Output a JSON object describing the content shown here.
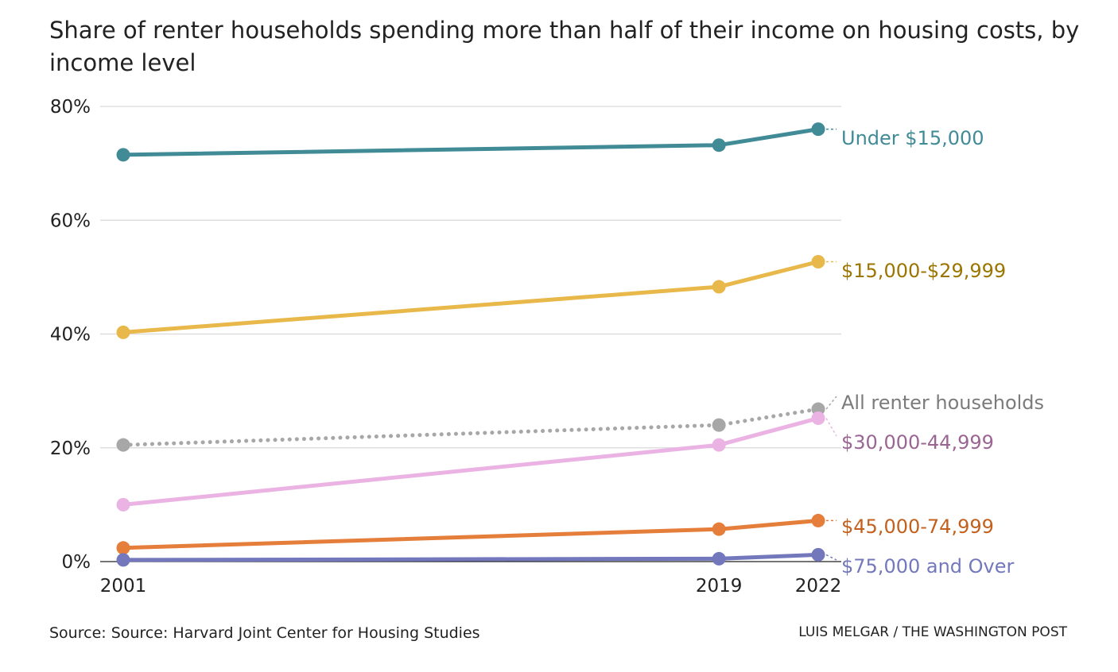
{
  "title": "Share of renter households spending more than half of their income on housing costs, by income level",
  "source": "Source: Source: Harvard Joint Center for Housing Studies",
  "credit": "LUIS MELGAR / THE WASHINGTON POST",
  "chart_data": {
    "type": "line",
    "title": "Share of renter households spending more than half of their income on housing costs, by income level",
    "x": [
      2001,
      2019,
      2022
    ],
    "xlim": [
      2001,
      2022
    ],
    "ylim": [
      0,
      80
    ],
    "yticks": [
      0,
      20,
      40,
      60,
      80
    ],
    "ytick_labels": [
      "0%",
      "20%",
      "40%",
      "60%",
      "80%"
    ],
    "xtick_labels": [
      "2001",
      "2019",
      "2022"
    ],
    "grid": true,
    "legend": "direct labels at right end of lines",
    "series": [
      {
        "name": "Under $15,000",
        "values": [
          71.5,
          73.2,
          76
        ],
        "color": "#418b97",
        "label_color": "#418b97",
        "style": "solid"
      },
      {
        "name": "$15,000-$29,999",
        "values": [
          40.3,
          48.3,
          52.7
        ],
        "color": "#e8b84a",
        "label_color": "#9c7400",
        "style": "solid"
      },
      {
        "name": "All renter households",
        "values": [
          20.5,
          24,
          26.8
        ],
        "color": "#a7a7a7",
        "label_color": "#7b7b7b",
        "style": "dotted"
      },
      {
        "name": "$30,000-44,999",
        "values": [
          10,
          20.5,
          25.2
        ],
        "color": "#ebb3e3",
        "label_color": "#9a6592",
        "style": "solid"
      },
      {
        "name": "$45,000-74,999",
        "values": [
          2.4,
          5.7,
          7.2
        ],
        "color": "#e47e3a",
        "label_color": "#c3601d",
        "style": "solid"
      },
      {
        "name": "$75,000 and Over",
        "values": [
          0.3,
          0.5,
          1.2
        ],
        "color": "#7378bc",
        "label_color": "#7378bc",
        "style": "solid"
      }
    ]
  }
}
